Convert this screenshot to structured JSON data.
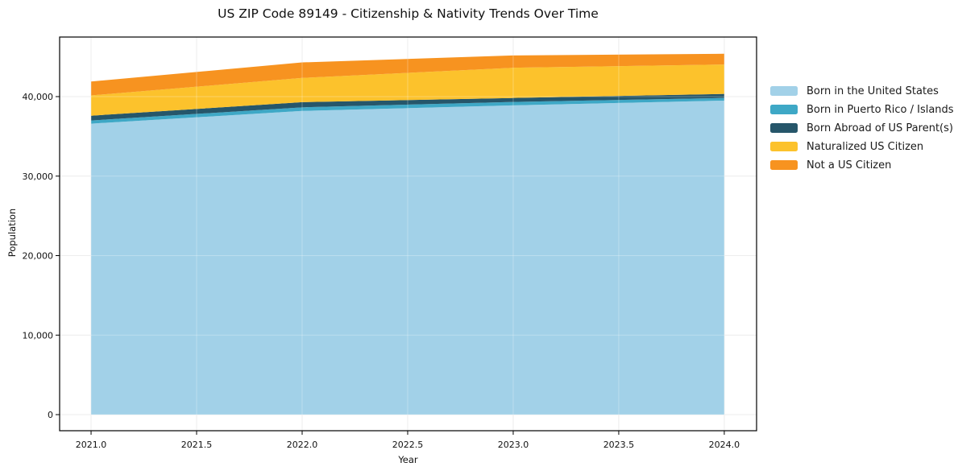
{
  "chart_data": {
    "type": "area",
    "stacked": true,
    "title": "US ZIP Code 89149 - Citizenship & Nativity Trends Over Time",
    "xlabel": "Year",
    "ylabel": "Population",
    "x": [
      2021,
      2022,
      2023,
      2024
    ],
    "series": [
      {
        "name": "Born in the United States",
        "color": "#A2D1E8",
        "values": [
          36600,
          38200,
          38900,
          39500
        ]
      },
      {
        "name": "Born in Puerto Rico / Islands",
        "color": "#3EA8C6",
        "values": [
          400,
          450,
          430,
          330
        ]
      },
      {
        "name": "Born Abroad of US Parent(s)",
        "color": "#26566A",
        "values": [
          600,
          650,
          500,
          510
        ]
      },
      {
        "name": "Naturalized US Citizen",
        "color": "#FCC22C",
        "values": [
          2550,
          3050,
          3800,
          3700
        ]
      },
      {
        "name": "Not a US Citizen",
        "color": "#F79320",
        "values": [
          1750,
          1950,
          1550,
          1350
        ]
      }
    ],
    "totals": [
      41900,
      44300,
      45180,
      45390
    ],
    "x_ticks": [
      2021.0,
      2021.5,
      2022.0,
      2022.5,
      2023.0,
      2023.5,
      2024.0
    ],
    "x_tick_labels": [
      "2021.0",
      "2021.5",
      "2022.0",
      "2022.5",
      "2023.0",
      "2023.5",
      "2024.0"
    ],
    "y_ticks": [
      0,
      10000,
      20000,
      30000,
      40000
    ],
    "y_tick_labels": [
      "0",
      "10,000",
      "20,000",
      "30,000",
      "40,000"
    ],
    "xlim": [
      2020.851,
      2024.153
    ],
    "ylim": [
      -2025,
      47494
    ],
    "grid": true,
    "legend_position": "right"
  },
  "colors": {
    "grid": "#E7E7E7",
    "frame": "#000000",
    "text": "#111111",
    "background": "#FFFFFF"
  }
}
